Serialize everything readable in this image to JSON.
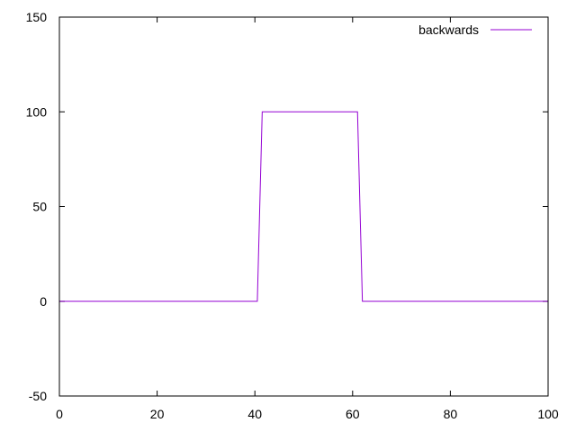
{
  "chart_data": {
    "type": "line",
    "title": "",
    "xlabel": "",
    "ylabel": "",
    "xlim": [
      0,
      100
    ],
    "ylim": [
      -50,
      150
    ],
    "x_ticks": [
      0,
      20,
      40,
      60,
      80,
      100
    ],
    "y_ticks": [
      -50,
      0,
      50,
      100,
      150
    ],
    "x_tick_labels": [
      "0",
      "20",
      "40",
      "60",
      "80",
      "100"
    ],
    "y_tick_labels": [
      "-50",
      "0",
      "50",
      "100",
      "150"
    ],
    "grid": false,
    "legend_position": "top-right",
    "series": [
      {
        "name": "backwards",
        "color": "#9400d3",
        "x": [
          0,
          40.5,
          41.5,
          61,
          62,
          100
        ],
        "y": [
          0,
          0,
          100,
          100,
          0,
          0
        ]
      }
    ]
  }
}
